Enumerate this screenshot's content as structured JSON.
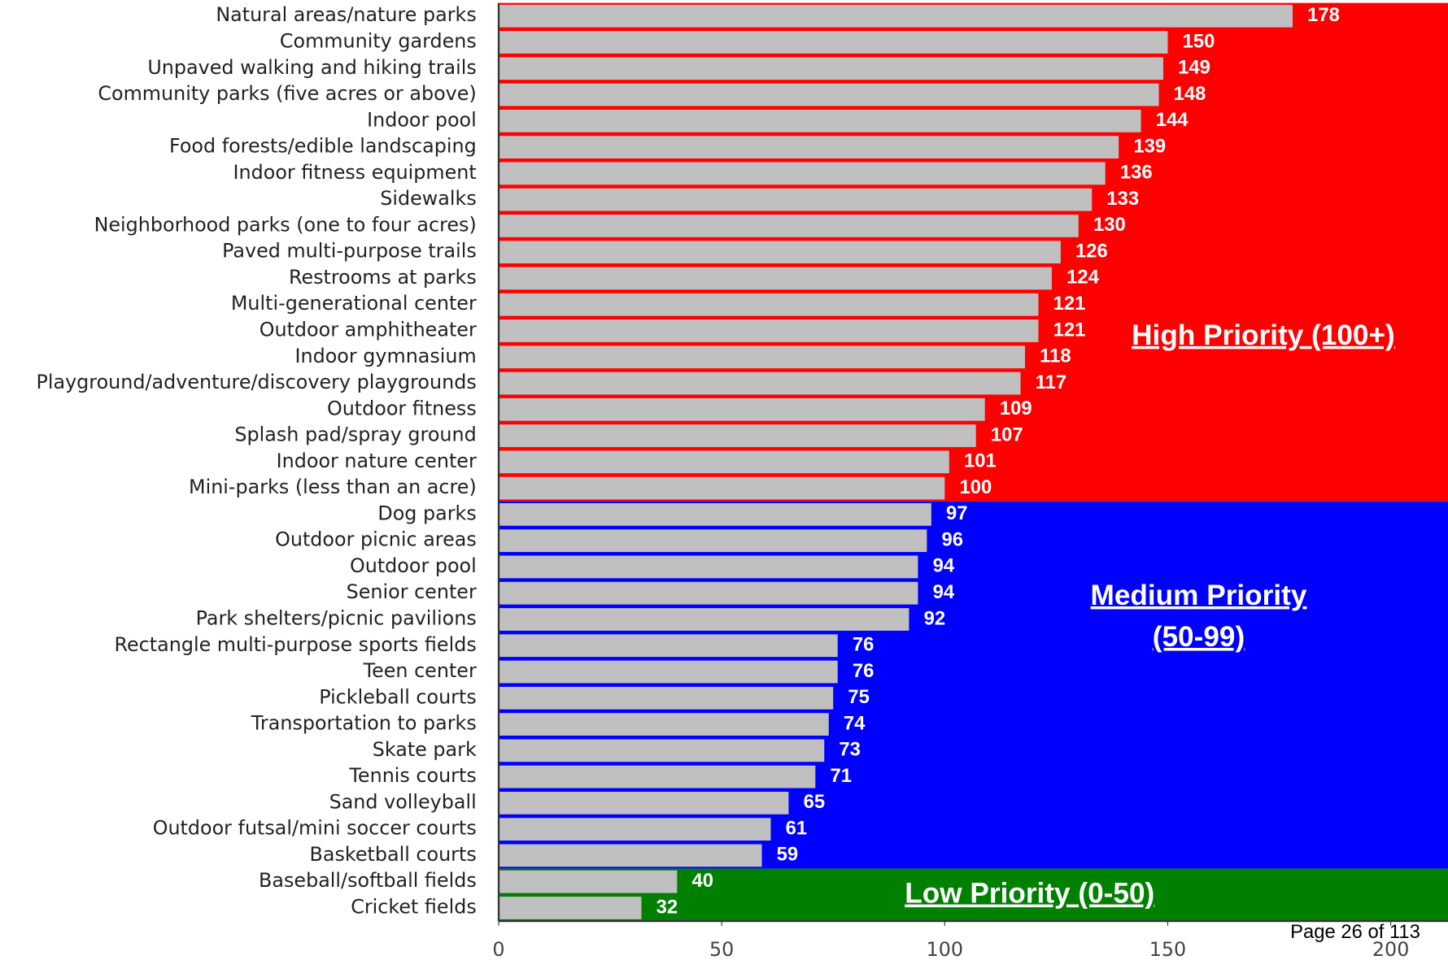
{
  "chart_data": {
    "type": "bar",
    "orientation": "horizontal",
    "color": "#c0c0c0",
    "categories": [
      "Natural areas/nature parks",
      "Community gardens",
      "Unpaved walking and hiking trails",
      "Community parks (five acres or above)",
      "Indoor pool",
      "Food forests/edible landscaping",
      "Indoor fitness equipment",
      "Sidewalks",
      "Neighborhood parks (one to four acres)",
      "Paved multi-purpose trails",
      "Restrooms at parks",
      "Multi-generational center",
      "Outdoor amphitheater",
      "Indoor gymnasium",
      "Playground/adventure/discovery playgrounds",
      "Outdoor fitness",
      "Splash pad/spray ground",
      "Indoor nature center",
      "Mini-parks (less than an acre)",
      "Dog parks",
      "Outdoor picnic areas",
      "Outdoor pool",
      "Senior center",
      "Park shelters/picnic pavilions",
      "Rectangle multi-purpose sports fields",
      "Teen center",
      "Pickleball courts",
      "Transportation to parks",
      "Skate park",
      "Tennis courts",
      "Sand volleyball",
      "Outdoor futsal/mini soccer courts",
      "Basketball courts",
      "Baseball/softball fields",
      "Cricket fields"
    ],
    "values": [
      178,
      150,
      149,
      148,
      144,
      139,
      136,
      133,
      130,
      126,
      124,
      121,
      121,
      118,
      117,
      109,
      107,
      101,
      100,
      97,
      96,
      94,
      94,
      92,
      76,
      76,
      75,
      74,
      73,
      71,
      65,
      61,
      59,
      40,
      32
    ],
    "xlim": [
      0,
      200
    ],
    "xticks": [
      0,
      50,
      100,
      150,
      200
    ],
    "bands": [
      {
        "labels": [
          "High Priority (100+)"
        ],
        "color": "#ff0000",
        "min": 100
      },
      {
        "labels": [
          "Medium Priority",
          "(50-99)"
        ],
        "color": "#0000ff",
        "min": 50
      },
      {
        "labels": [
          "Low Priority (0-50)"
        ],
        "color": "#008000",
        "min": 0
      }
    ]
  },
  "footer": {
    "page": "Page 26 of 113"
  }
}
